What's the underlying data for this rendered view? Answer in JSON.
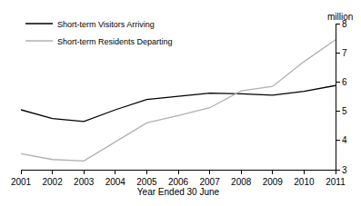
{
  "chart_data": {
    "type": "line",
    "x_label": "Year Ended 30 June",
    "y_label": "million",
    "x": [
      2001,
      2002,
      2003,
      2004,
      2005,
      2006,
      2007,
      2008,
      2009,
      2010,
      2011
    ],
    "series": [
      {
        "name": "Short-term Visitors Arriving",
        "color": "#000000",
        "values": [
          5.05,
          4.75,
          4.65,
          5.05,
          5.4,
          5.5,
          5.62,
          5.6,
          5.55,
          5.68,
          5.88
        ]
      },
      {
        "name": "Short-term Residents Departing",
        "color": "#b0b0b0",
        "values": [
          3.55,
          3.35,
          3.3,
          3.95,
          4.6,
          4.85,
          5.12,
          5.7,
          5.85,
          6.7,
          7.45
        ]
      }
    ],
    "xlim": [
      2001,
      2011
    ],
    "xticks": [
      2001,
      2002,
      2003,
      2004,
      2005,
      2006,
      2007,
      2008,
      2009,
      2010,
      2011
    ],
    "ylim": [
      3,
      8
    ],
    "yticks": [
      3,
      4,
      5,
      6,
      7,
      8
    ],
    "grid": false,
    "legend": "upper left"
  }
}
